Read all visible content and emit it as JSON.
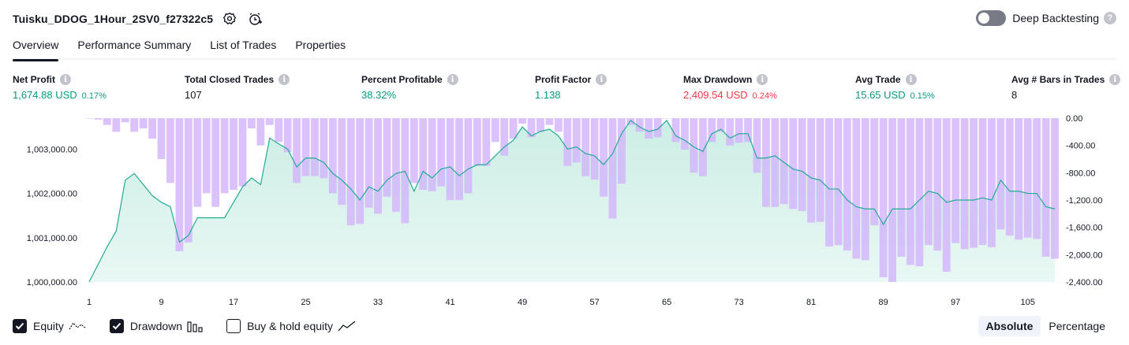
{
  "header": {
    "title": "Tuisku_DDOG_1Hour_2SV0_f27322c5",
    "deep_backtesting_label": "Deep Backtesting"
  },
  "tabs": [
    {
      "label": "Overview"
    },
    {
      "label": "Performance Summary"
    },
    {
      "label": "List of Trades"
    },
    {
      "label": "Properties"
    }
  ],
  "metrics": [
    {
      "label": "Net Profit",
      "value": "1,674.88 USD",
      "pct": "0.17%",
      "color": "#089981"
    },
    {
      "label": "Total Closed Trades",
      "value": "107",
      "pct": "",
      "color": "#131722"
    },
    {
      "label": "Percent Profitable",
      "value": "38.32%",
      "pct": "",
      "color": "#089981"
    },
    {
      "label": "Profit Factor",
      "value": "1.138",
      "pct": "",
      "color": "#089981"
    },
    {
      "label": "Max Drawdown",
      "value": "2,409.54 USD",
      "pct": "0.24%",
      "color": "#f23645"
    },
    {
      "label": "Avg Trade",
      "value": "15.65 USD",
      "pct": "0.15%",
      "color": "#089981"
    },
    {
      "label": "Avg # Bars in Trades",
      "value": "8",
      "pct": "",
      "color": "#131722"
    }
  ],
  "legend": {
    "equity": "Equity",
    "drawdown": "Drawdown",
    "buyhold": "Buy & hold equity"
  },
  "modes": {
    "absolute": "Absolute",
    "percentage": "Percentage"
  },
  "colors": {
    "equity_line": "#22ab94",
    "equity_fill": "#c9ede3",
    "drawdown_bar": "#d3b4fb",
    "text": "#131722"
  },
  "chart_data": {
    "type": "area",
    "x": [
      1,
      2,
      3,
      4,
      5,
      6,
      7,
      8,
      9,
      10,
      11,
      12,
      13,
      14,
      15,
      16,
      17,
      18,
      19,
      20,
      21,
      22,
      23,
      24,
      25,
      26,
      27,
      28,
      29,
      30,
      31,
      32,
      33,
      34,
      35,
      36,
      37,
      38,
      39,
      40,
      41,
      42,
      43,
      44,
      45,
      46,
      47,
      48,
      49,
      50,
      51,
      52,
      53,
      54,
      55,
      56,
      57,
      58,
      59,
      60,
      61,
      62,
      63,
      64,
      65,
      66,
      67,
      68,
      69,
      70,
      71,
      72,
      73,
      74,
      75,
      76,
      77,
      78,
      79,
      80,
      81,
      82,
      83,
      84,
      85,
      86,
      87,
      88,
      89,
      90,
      91,
      92,
      93,
      94,
      95,
      96,
      97,
      98,
      99,
      100,
      101,
      102,
      103,
      104,
      105,
      106,
      107,
      108
    ],
    "x_ticks": [
      1,
      9,
      17,
      25,
      33,
      41,
      49,
      57,
      65,
      73,
      81,
      89,
      97,
      105
    ],
    "x_tick_labels": [
      "1",
      "9",
      "17",
      "25",
      "33",
      "41",
      "49",
      "57",
      "65",
      "73",
      "81",
      "89",
      "97",
      "105"
    ],
    "equity": {
      "name": "Equity",
      "axis": "left",
      "ylim": [
        1000000,
        1003700
      ],
      "y_ticks": [
        1000000,
        1001000,
        1002000,
        1003000
      ],
      "y_tick_labels": [
        "1,000,000.00",
        "1,001,000.00",
        "1,002,000.00",
        "1,003,000.00"
      ],
      "values": [
        1000000,
        1000400,
        1000800,
        1001150,
        1002300,
        1002450,
        1002200,
        1001950,
        1001800,
        1001700,
        1000900,
        1001050,
        1001450,
        1001450,
        1001450,
        1001450,
        1001800,
        1002150,
        1002350,
        1002200,
        1003250,
        1003120,
        1003000,
        1002600,
        1002800,
        1002800,
        1002700,
        1002450,
        1002300,
        1002100,
        1001850,
        1002150,
        1002050,
        1002300,
        1002450,
        1002500,
        1002050,
        1002500,
        1002350,
        1002550,
        1002600,
        1002400,
        1002550,
        1002650,
        1002650,
        1002850,
        1003050,
        1003200,
        1003500,
        1003300,
        1003400,
        1003450,
        1003300,
        1003000,
        1003050,
        1002900,
        1002850,
        1002650,
        1002900,
        1003350,
        1003650,
        1003500,
        1003400,
        1003450,
        1003650,
        1003300,
        1003200,
        1003050,
        1002950,
        1003350,
        1003450,
        1003250,
        1003350,
        1003350,
        1002800,
        1002800,
        1002850,
        1002700,
        1002550,
        1002500,
        1002350,
        1002300,
        1002100,
        1002100,
        1001850,
        1001700,
        1001650,
        1001650,
        1001300,
        1001650,
        1001650,
        1001650,
        1001850,
        1002050,
        1002000,
        1001800,
        1001850,
        1001850,
        1001850,
        1001900,
        1001850,
        1002300,
        1002050,
        1002050,
        1002000,
        1002000,
        1001700,
        1001650
      ]
    },
    "drawdown": {
      "name": "Drawdown",
      "axis": "right",
      "ylim": [
        -2400,
        0
      ],
      "y_ticks": [
        0,
        -400,
        -800,
        -1200,
        -1600,
        -2000,
        -2400
      ],
      "y_tick_labels": [
        "0.00",
        "-400.00",
        "-800.00",
        "-1,200.00",
        "-1,600.00",
        "-2,000.00",
        "-2,400.00"
      ],
      "values": [
        0,
        -20,
        -100,
        -200,
        -60,
        -200,
        -150,
        -300,
        -600,
        -950,
        -1950,
        -1820,
        -1300,
        -1100,
        -1300,
        -1100,
        -1050,
        -1000,
        -150,
        -400,
        -100,
        -350,
        -500,
        -950,
        -850,
        -850,
        -880,
        -1100,
        -1270,
        -1570,
        -1550,
        -1310,
        -1400,
        -1150,
        -1370,
        -1540,
        -950,
        -1050,
        -1070,
        -1000,
        -1200,
        -1200,
        -1100,
        -700,
        -700,
        -350,
        -550,
        -300,
        -80,
        -280,
        -200,
        -100,
        -200,
        -700,
        -650,
        -850,
        -900,
        -1150,
        -1470,
        -960,
        -100,
        -200,
        -300,
        -280,
        0,
        -350,
        -460,
        -800,
        -850,
        -350,
        -200,
        -400,
        -360,
        -350,
        -800,
        -1300,
        -1300,
        -1260,
        -1330,
        -1360,
        -1530,
        -1520,
        -1880,
        -1860,
        -1940,
        -2060,
        -2080,
        -1570,
        -2330,
        -2400,
        -2030,
        -2150,
        -2170,
        -1860,
        -1940,
        -2250,
        -1830,
        -1920,
        -1900,
        -1860,
        -1890,
        -1630,
        -1720,
        -1780,
        -1750,
        -1770,
        -2030,
        -2060
      ]
    }
  }
}
